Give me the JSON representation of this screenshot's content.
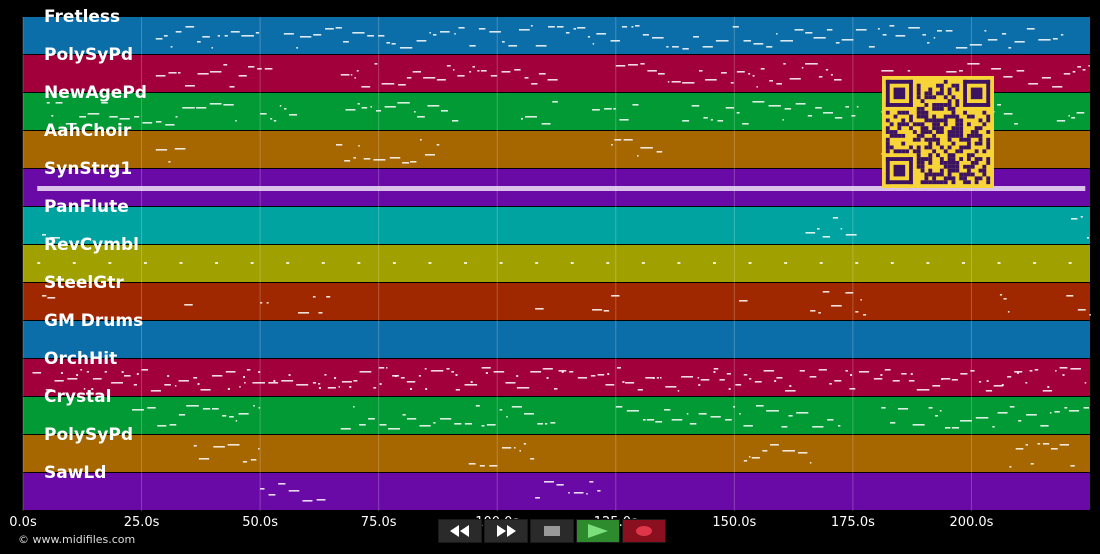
{
  "player": {
    "copyright": "© www.midifiles.com",
    "duration_seconds": 225,
    "progress_seconds": 0
  },
  "tracks": [
    {
      "name": "Fretless",
      "color": "#0b6ea8"
    },
    {
      "name": "PolySyPd",
      "color": "#a1003a"
    },
    {
      "name": "NewAgePd",
      "color": "#029a34"
    },
    {
      "name": "AahChoir",
      "color": "#a66600"
    },
    {
      "name": "SynStrg1",
      "color": "#6a0aa6"
    },
    {
      "name": "PanFlute",
      "color": "#00a3a0"
    },
    {
      "name": "RevCymbl",
      "color": "#a0a000"
    },
    {
      "name": "SteelGtr",
      "color": "#a02800"
    },
    {
      "name": "GM Drums",
      "color": "#0b6ea8"
    },
    {
      "name": "OrchHit",
      "color": "#a1003a"
    },
    {
      "name": "Crystal",
      "color": "#029a34"
    },
    {
      "name": "PolySyPd",
      "color": "#a66600"
    },
    {
      "name": "SawLd",
      "color": "#6a0aa6"
    }
  ],
  "timeline": {
    "ticks": [
      {
        "t": 0,
        "label": "0.0s"
      },
      {
        "t": 25,
        "label": "25.0s"
      },
      {
        "t": 50,
        "label": "50.0s"
      },
      {
        "t": 75,
        "label": "75.0s"
      },
      {
        "t": 100,
        "label": "100.0s"
      },
      {
        "t": 125,
        "label": "125.0s"
      },
      {
        "t": 150,
        "label": "150.0s"
      },
      {
        "t": 175,
        "label": "175.0s"
      },
      {
        "t": 200,
        "label": "200.0s"
      }
    ]
  },
  "transport": {
    "buttons": [
      {
        "name": "rewind-button",
        "icon": "rewind-icon"
      },
      {
        "name": "fast-forward-button",
        "icon": "fast-forward-icon"
      },
      {
        "name": "stop-button",
        "icon": "stop-icon"
      },
      {
        "name": "play-button",
        "icon": "play-icon"
      },
      {
        "name": "record-button",
        "icon": "record-icon"
      }
    ]
  },
  "qr_code": {
    "icon": "qr-code-icon",
    "color": "#3c1361",
    "background": "#f7d438"
  }
}
